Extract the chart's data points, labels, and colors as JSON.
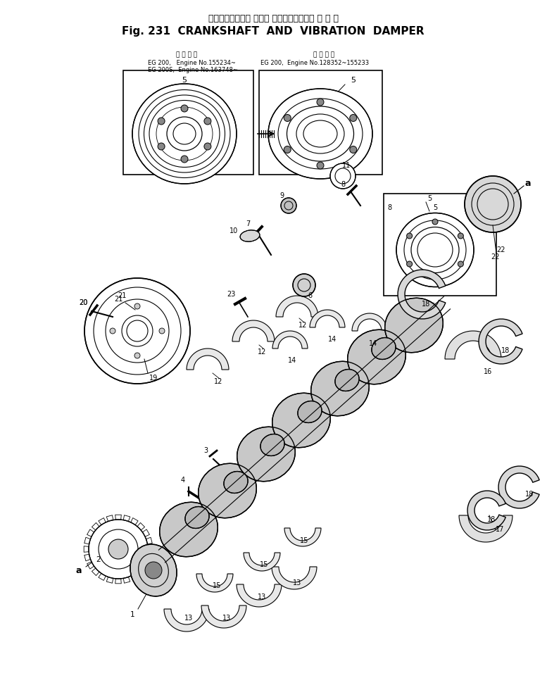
{
  "title_japanese": "クランクシャフト および バイブレーション ダ ン パ",
  "title_english": "Fig. 231  CRANKSHAFT  AND  VIBRATION  DAMPER",
  "bg_color": "#ffffff",
  "fig_width": 7.77,
  "fig_height": 9.9,
  "dpi": 100,
  "box1_label_jp": "適 用 号 機",
  "box1_text1": "EG 200,   Engine No.155234~",
  "box1_text2": "EG 200S,  Engine No.163748~",
  "box2_label_jp": "適 用 号 機",
  "box2_text1": "EG 200,  Engine No.128352~155233"
}
